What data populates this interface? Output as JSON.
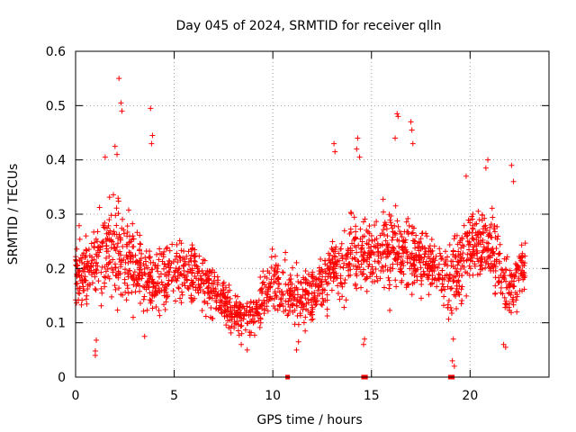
{
  "chart_data": {
    "type": "scatter",
    "title": "Day 045 of 2024, SRMTID for receiver qlln",
    "xlabel": "GPS time / hours",
    "ylabel": "SRMTID / TECUs",
    "xlim": [
      0,
      24
    ],
    "ylim": [
      0,
      0.6
    ],
    "xticks": [
      0,
      5,
      10,
      15,
      20
    ],
    "xtick_labels": [
      "0",
      "5",
      "10",
      "15",
      "20"
    ],
    "yticks": [
      0,
      0.1,
      0.2,
      0.3,
      0.4,
      0.5,
      0.6
    ],
    "ytick_labels": [
      "0",
      "0.1",
      "0.2",
      "0.3",
      "0.4",
      "0.5",
      "0.6"
    ],
    "grid": true,
    "marker": "+",
    "series": [
      {
        "name": "SRMTID",
        "color": "#ff0000",
        "envelope_hours": [
          0,
          1,
          2,
          3,
          4,
          5,
          6,
          7,
          8,
          9,
          10,
          11,
          12,
          13,
          14,
          15,
          16,
          17,
          18,
          19,
          20,
          21,
          22,
          22.8
        ],
        "envelope_median": [
          0.19,
          0.21,
          0.24,
          0.2,
          0.17,
          0.2,
          0.19,
          0.16,
          0.11,
          0.11,
          0.17,
          0.15,
          0.15,
          0.2,
          0.22,
          0.22,
          0.24,
          0.22,
          0.2,
          0.18,
          0.24,
          0.24,
          0.16,
          0.21
        ],
        "envelope_spread": [
          0.06,
          0.07,
          0.09,
          0.08,
          0.07,
          0.06,
          0.06,
          0.05,
          0.04,
          0.04,
          0.06,
          0.05,
          0.05,
          0.07,
          0.08,
          0.07,
          0.08,
          0.07,
          0.06,
          0.07,
          0.07,
          0.07,
          0.05,
          0.05
        ],
        "peaks": [
          {
            "x": 2.2,
            "y": 0.55
          },
          {
            "x": 2.3,
            "y": 0.505
          },
          {
            "x": 2.35,
            "y": 0.49
          },
          {
            "x": 3.8,
            "y": 0.495
          },
          {
            "x": 3.9,
            "y": 0.445
          },
          {
            "x": 3.85,
            "y": 0.43
          },
          {
            "x": 2.0,
            "y": 0.425
          },
          {
            "x": 2.1,
            "y": 0.41
          },
          {
            "x": 1.5,
            "y": 0.405
          },
          {
            "x": 13.1,
            "y": 0.43
          },
          {
            "x": 13.15,
            "y": 0.415
          },
          {
            "x": 14.3,
            "y": 0.44
          },
          {
            "x": 14.25,
            "y": 0.42
          },
          {
            "x": 14.4,
            "y": 0.405
          },
          {
            "x": 16.3,
            "y": 0.485
          },
          {
            "x": 16.35,
            "y": 0.48
          },
          {
            "x": 16.2,
            "y": 0.44
          },
          {
            "x": 17.0,
            "y": 0.47
          },
          {
            "x": 17.05,
            "y": 0.455
          },
          {
            "x": 17.1,
            "y": 0.43
          },
          {
            "x": 20.9,
            "y": 0.4
          },
          {
            "x": 20.8,
            "y": 0.385
          },
          {
            "x": 22.1,
            "y": 0.39
          },
          {
            "x": 19.8,
            "y": 0.37
          },
          {
            "x": 22.2,
            "y": 0.36
          }
        ],
        "lows": [
          {
            "x": 1.0,
            "y": 0.04
          },
          {
            "x": 1.0,
            "y": 0.048
          },
          {
            "x": 1.05,
            "y": 0.068
          },
          {
            "x": 11.2,
            "y": 0.05
          },
          {
            "x": 11.3,
            "y": 0.065
          },
          {
            "x": 19.1,
            "y": 0.03
          },
          {
            "x": 19.2,
            "y": 0.02
          },
          {
            "x": 19.15,
            "y": 0.07
          },
          {
            "x": 14.6,
            "y": 0.06
          },
          {
            "x": 14.65,
            "y": 0.07
          },
          {
            "x": 21.7,
            "y": 0.06
          },
          {
            "x": 21.8,
            "y": 0.055
          },
          {
            "x": 8.7,
            "y": 0.05
          },
          {
            "x": 8.4,
            "y": 0.06
          },
          {
            "x": 3.5,
            "y": 0.075
          }
        ],
        "zeros": [
          {
            "x": 10.75,
            "y": 0.0
          },
          {
            "x": 14.6,
            "y": 0.0
          },
          {
            "x": 14.7,
            "y": 0.0
          },
          {
            "x": 19.0,
            "y": 0.0
          },
          {
            "x": 19.1,
            "y": 0.0
          }
        ]
      }
    ]
  }
}
